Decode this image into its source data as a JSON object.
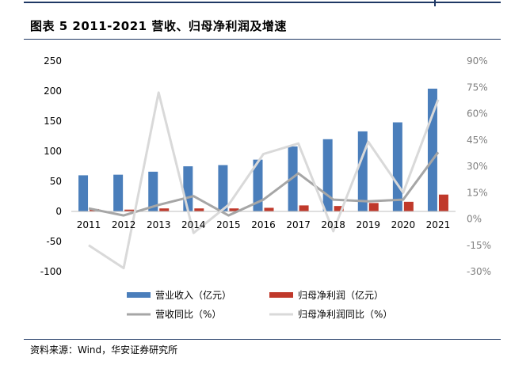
{
  "header": {
    "title": "图表 5 2011-2021 营收、归母净利润及增速"
  },
  "footer": {
    "source": "资料来源：Wind，华安证券研究所"
  },
  "chart_data": {
    "type": "bar",
    "title": "图表 5 2011-2021 营收、归母净利润及增速",
    "categories": [
      "2011",
      "2012",
      "2013",
      "2014",
      "2015",
      "2016",
      "2017",
      "2018",
      "2019",
      "2020",
      "2021"
    ],
    "y_left": {
      "ylim": [
        -100,
        250
      ],
      "ticks": [
        "250",
        "200",
        "150",
        "100",
        "50",
        "0",
        "-50",
        "-100"
      ]
    },
    "y_right": {
      "ylim": [
        -30,
        90
      ],
      "ticks": [
        "90%",
        "75%",
        "60%",
        "45%",
        "30%",
        "15%",
        "0%",
        "-15%",
        "-30%"
      ]
    },
    "grid": false,
    "legend_position": "bottom",
    "series": [
      {
        "name": "营业收入（亿元）",
        "type": "bar",
        "axis": "left",
        "color": "#4a7ebb",
        "values": [
          60,
          61,
          66,
          75,
          77,
          86,
          108,
          120,
          133,
          148,
          204
        ]
      },
      {
        "name": "归母净利润（亿元）",
        "type": "bar",
        "axis": "left",
        "color": "#c0392b",
        "values": [
          4,
          3,
          5,
          5,
          5,
          6,
          10,
          9,
          14,
          16,
          28
        ]
      },
      {
        "name": "营收同比（%）",
        "type": "line",
        "axis": "right",
        "color": "#a6a6a6",
        "values": [
          6,
          2,
          8,
          13,
          2,
          11,
          26,
          11,
          10,
          11,
          38
        ]
      },
      {
        "name": "归母净利润同比（%）",
        "type": "line",
        "axis": "right",
        "color": "#d9d9d9",
        "values": [
          -15,
          -28,
          72,
          -8,
          8,
          37,
          43,
          -7,
          44,
          15,
          68
        ]
      }
    ]
  }
}
